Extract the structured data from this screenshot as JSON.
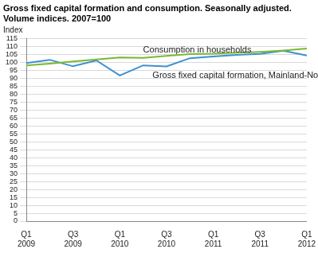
{
  "chart_data": {
    "type": "line",
    "title": [
      "Gross fixed capital formation and consumption. Seasonally adjusted.",
      "Volume indices. 2007=100"
    ],
    "y_label": "Index",
    "categories": [
      "Q1 2009",
      null,
      "Q3 2009",
      null,
      "Q1 2010",
      null,
      "Q3 2010",
      null,
      "Q1 2011",
      null,
      "Q3 2011",
      null,
      "Q1 2012"
    ],
    "series": [
      {
        "name": "Consumption in households",
        "color": "#7ab82f",
        "values": [
          98.0,
          99.2,
          100.5,
          101.8,
          103.0,
          102.8,
          104.0,
          105.2,
          105.4,
          106.0,
          106.6,
          107.4,
          108.7
        ]
      },
      {
        "name": "Gross fixed capital formation, Mainland-Norway",
        "color": "#3d8fd1",
        "values": [
          99.5,
          101.6,
          97.5,
          101.2,
          91.7,
          98.1,
          97.4,
          102.6,
          103.7,
          104.7,
          105.3,
          107.3,
          104.3
        ]
      }
    ],
    "ylim": [
      0,
      115
    ],
    "yticks": [
      0,
      5,
      10,
      15,
      20,
      25,
      30,
      35,
      40,
      45,
      50,
      55,
      60,
      65,
      70,
      75,
      80,
      85,
      90,
      95,
      100,
      105,
      110,
      115
    ],
    "grid": true
  }
}
